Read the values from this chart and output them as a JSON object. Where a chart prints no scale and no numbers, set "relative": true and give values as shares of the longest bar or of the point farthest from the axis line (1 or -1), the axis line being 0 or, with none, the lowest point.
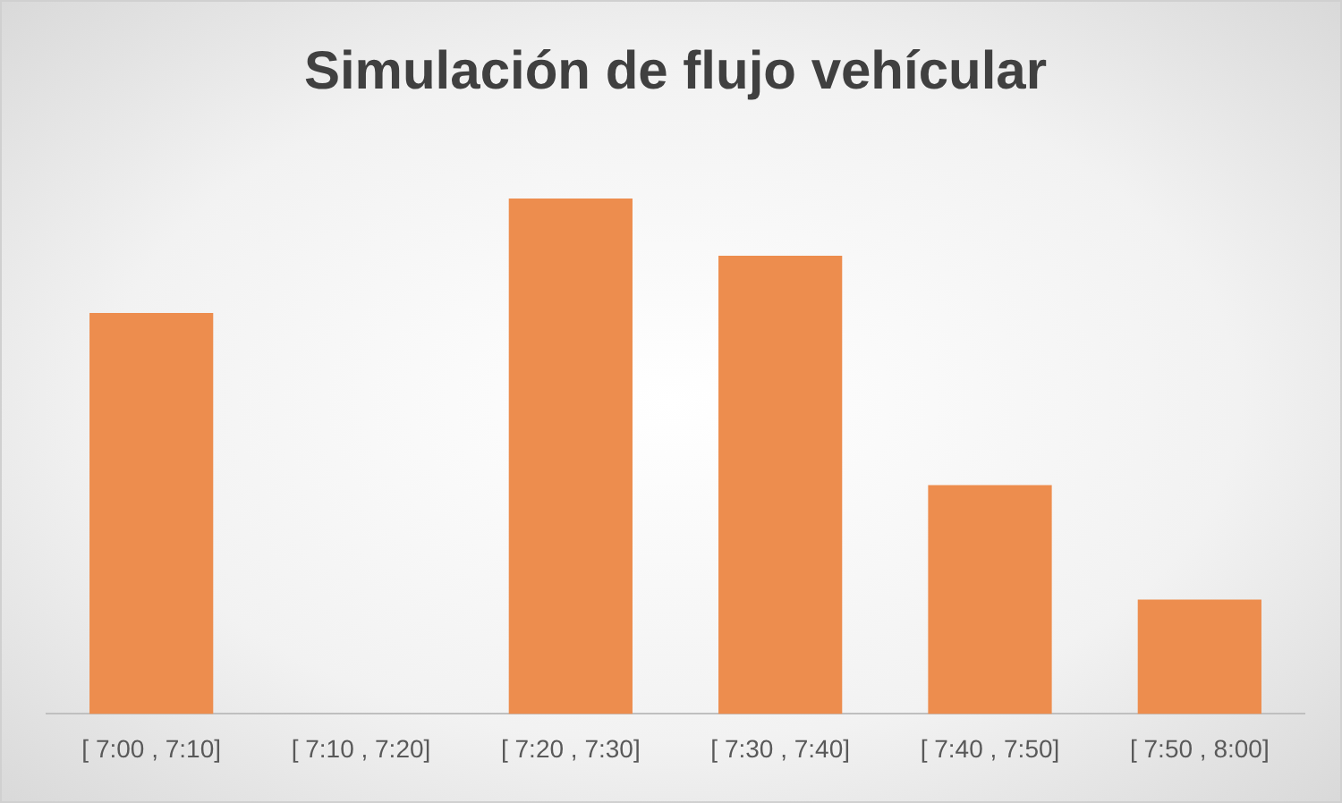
{
  "chart_data": {
    "type": "bar",
    "title": "Simulación de flujo vehícular",
    "relative": true,
    "categories": [
      "[ 7:00 , 7:10]",
      "[ 7:10 , 7:20]",
      "[ 7:20 , 7:30]",
      "[ 7:30 , 7:40]",
      "[ 7:40 , 7:50]",
      "[ 7:50 , 8:00]"
    ],
    "values": [
      0.778,
      0,
      1,
      0.889,
      0.444,
      0.222
    ],
    "color": "#ed8d4e",
    "grid": false,
    "legend": false
  }
}
